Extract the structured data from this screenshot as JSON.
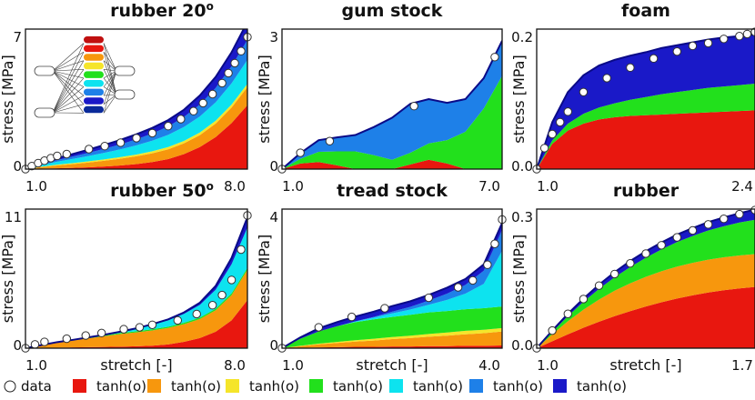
{
  "colors": {
    "red": "#e8170f",
    "orange": "#f7970d",
    "yellow": "#f5e52a",
    "green": "#22e01c",
    "cyan": "#0de3ef",
    "lightblue": "#1e80e8",
    "navy": "#1a19c8",
    "curve": "#0a0a88"
  },
  "legend": [
    {
      "label": "data",
      "color": "#ffffff",
      "marker": "circle"
    },
    {
      "label": "tanh(o)",
      "color": "#e8170f",
      "marker": "square"
    },
    {
      "label": "tanh(o)",
      "color": "#f7970d",
      "marker": "square"
    },
    {
      "label": "tanh(o)",
      "color": "#f5e52a",
      "marker": "square"
    },
    {
      "label": "tanh(o)",
      "color": "#22e01c",
      "marker": "square"
    },
    {
      "label": "tanh(o)",
      "color": "#0de3ef",
      "marker": "square"
    },
    {
      "label": "tanh(o)",
      "color": "#1e80e8",
      "marker": "square"
    },
    {
      "label": "tanh(o)",
      "color": "#1a19c8",
      "marker": "square"
    }
  ],
  "chart_data": [
    {
      "type": "area",
      "title": "rubber 20",
      "title_sup": "o",
      "ylabel": "stress [MPa]",
      "xlabel": "",
      "xlim": [
        1.0,
        8.0
      ],
      "ylim": [
        0,
        7
      ],
      "xtick_labels": [
        "1.0",
        "8.0"
      ],
      "ytick_labels": [
        "0",
        "7"
      ],
      "x": [
        1.0,
        1.5,
        2.0,
        2.5,
        3.0,
        3.5,
        4.0,
        4.5,
        5.0,
        5.5,
        6.0,
        6.5,
        7.0,
        7.5,
        8.0
      ],
      "series": [
        {
          "name": "tanh(o)",
          "color": "red",
          "values": [
            0,
            0.02,
            0.04,
            0.06,
            0.09,
            0.13,
            0.18,
            0.25,
            0.35,
            0.5,
            0.75,
            1.1,
            1.6,
            2.3,
            3.2
          ]
        },
        {
          "name": "tanh(o)",
          "color": "orange",
          "values": [
            0,
            0.08,
            0.14,
            0.19,
            0.24,
            0.29,
            0.34,
            0.39,
            0.44,
            0.49,
            0.54,
            0.6,
            0.68,
            0.78,
            0.9
          ]
        },
        {
          "name": "tanh(o)",
          "color": "yellow",
          "values": [
            0,
            0.02,
            0.04,
            0.05,
            0.06,
            0.07,
            0.08,
            0.09,
            0.1,
            0.11,
            0.12,
            0.13,
            0.14,
            0.15,
            0.16
          ]
        },
        {
          "name": "tanh(o)",
          "color": "cyan",
          "values": [
            0,
            0.08,
            0.15,
            0.21,
            0.27,
            0.33,
            0.39,
            0.46,
            0.53,
            0.61,
            0.7,
            0.8,
            0.92,
            1.06,
            1.2
          ]
        },
        {
          "name": "tanh(o)",
          "color": "lightblue",
          "values": [
            0,
            0.04,
            0.08,
            0.12,
            0.16,
            0.2,
            0.25,
            0.3,
            0.36,
            0.42,
            0.5,
            0.6,
            0.72,
            0.85,
            1.0
          ]
        },
        {
          "name": "tanh(o)",
          "color": "navy",
          "values": [
            0,
            0.06,
            0.1,
            0.13,
            0.16,
            0.19,
            0.22,
            0.25,
            0.28,
            0.32,
            0.36,
            0.45,
            0.55,
            0.7,
            0.9
          ]
        }
      ],
      "data_points": {
        "x": [
          1.0,
          1.2,
          1.4,
          1.6,
          1.8,
          2.0,
          2.3,
          3.0,
          3.5,
          4.0,
          4.5,
          5.0,
          5.5,
          5.9,
          6.3,
          6.6,
          6.9,
          7.2,
          7.4,
          7.6,
          7.8,
          8.0
        ],
        "y": [
          0,
          0.15,
          0.3,
          0.42,
          0.55,
          0.66,
          0.75,
          1.0,
          1.15,
          1.32,
          1.55,
          1.8,
          2.15,
          2.5,
          2.9,
          3.3,
          3.75,
          4.3,
          4.8,
          5.3,
          5.9,
          6.6
        ]
      }
    },
    {
      "type": "area",
      "title": "gum stock",
      "title_sup": "",
      "ylabel": "stress [MPa]",
      "xlabel": "",
      "xlim": [
        1.0,
        7.0
      ],
      "ylim": [
        0,
        3
      ],
      "xtick_labels": [
        "1.0",
        "7.0"
      ],
      "ytick_labels": [
        "0",
        "3"
      ],
      "x": [
        1.0,
        1.5,
        2.0,
        2.5,
        3.0,
        3.5,
        4.0,
        4.5,
        5.0,
        5.5,
        6.0,
        6.5,
        7.0
      ],
      "series": [
        {
          "name": "tanh(o)",
          "color": "red",
          "values": [
            0,
            0.12,
            0.15,
            0.08,
            0.0,
            0.0,
            0.0,
            0.1,
            0.2,
            0.12,
            0.0,
            0.0,
            0.0
          ]
        },
        {
          "name": "tanh(o)",
          "color": "green",
          "values": [
            0,
            0.1,
            0.22,
            0.3,
            0.38,
            0.3,
            0.2,
            0.25,
            0.35,
            0.5,
            0.8,
            1.3,
            2.0
          ]
        },
        {
          "name": "tanh(o)",
          "color": "lightblue",
          "values": [
            0,
            0.12,
            0.25,
            0.3,
            0.35,
            0.6,
            0.9,
            1.05,
            0.95,
            0.8,
            0.7,
            0.65,
            0.75
          ]
        }
      ],
      "data_points": {
        "x": [
          1.0,
          1.5,
          2.3,
          4.6,
          6.8
        ],
        "y": [
          0,
          0.35,
          0.6,
          1.35,
          2.4
        ]
      }
    },
    {
      "type": "area",
      "title": "foam",
      "title_sup": "",
      "ylabel": "stress [MPa]",
      "xlabel": "",
      "xlim": [
        1.0,
        2.4
      ],
      "ylim": [
        0,
        0.2
      ],
      "xtick_labels": [
        "1.0",
        "2.4"
      ],
      "ytick_labels": [
        "0.0",
        "0.2"
      ],
      "x": [
        1.0,
        1.1,
        1.2,
        1.3,
        1.4,
        1.5,
        1.6,
        1.7,
        1.8,
        1.9,
        2.0,
        2.1,
        2.2,
        2.3,
        2.4
      ],
      "series": [
        {
          "name": "tanh(o)",
          "color": "red",
          "values": [
            0,
            0.036,
            0.055,
            0.065,
            0.071,
            0.074,
            0.076,
            0.077,
            0.078,
            0.079,
            0.08,
            0.081,
            0.082,
            0.083,
            0.084
          ]
        },
        {
          "name": "tanh(o)",
          "color": "green",
          "values": [
            0,
            0.005,
            0.01,
            0.014,
            0.017,
            0.02,
            0.023,
            0.026,
            0.029,
            0.031,
            0.033,
            0.035,
            0.036,
            0.037,
            0.038
          ]
        },
        {
          "name": "tanh(o)",
          "color": "navy",
          "values": [
            0,
            0.026,
            0.045,
            0.055,
            0.06,
            0.062,
            0.063,
            0.064,
            0.066,
            0.067,
            0.068,
            0.069,
            0.07,
            0.07,
            0.07
          ]
        }
      ],
      "data_points": {
        "x": [
          1.0,
          1.05,
          1.1,
          1.15,
          1.2,
          1.3,
          1.45,
          1.6,
          1.75,
          1.9,
          2.0,
          2.1,
          2.2,
          2.3,
          2.35,
          2.4
        ],
        "y": [
          0,
          0.03,
          0.05,
          0.067,
          0.082,
          0.11,
          0.13,
          0.145,
          0.158,
          0.168,
          0.176,
          0.18,
          0.186,
          0.19,
          0.193,
          0.196
        ]
      }
    },
    {
      "type": "area",
      "title": "rubber 50",
      "title_sup": "o",
      "ylabel": "stress [MPa]",
      "xlabel": "stretch [-]",
      "xlim": [
        1.0,
        8.0
      ],
      "ylim": [
        0,
        11
      ],
      "xtick_labels": [
        "1.0",
        "8.0"
      ],
      "ytick_labels": [
        "0",
        "11"
      ],
      "x": [
        1.0,
        1.5,
        2.0,
        2.5,
        3.0,
        3.5,
        4.0,
        4.5,
        5.0,
        5.5,
        6.0,
        6.5,
        7.0,
        7.5,
        8.0
      ],
      "series": [
        {
          "name": "tanh(o)",
          "color": "red",
          "values": [
            0,
            0.02,
            0.04,
            0.06,
            0.08,
            0.1,
            0.12,
            0.15,
            0.2,
            0.3,
            0.5,
            0.8,
            1.3,
            2.2,
            3.8
          ]
        },
        {
          "name": "tanh(o)",
          "color": "orange",
          "values": [
            0,
            0.2,
            0.4,
            0.55,
            0.7,
            0.85,
            1.0,
            1.1,
            1.2,
            1.3,
            1.4,
            1.5,
            1.7,
            2.0,
            2.4
          ]
        },
        {
          "name": "tanh(o)",
          "color": "green",
          "values": [
            0,
            0.02,
            0.04,
            0.05,
            0.06,
            0.07,
            0.08,
            0.09,
            0.1,
            0.1,
            0.11,
            0.12,
            0.13,
            0.14,
            0.15
          ]
        },
        {
          "name": "tanh(o)",
          "color": "cyan",
          "values": [
            0,
            0.0,
            0.0,
            0.0,
            0.02,
            0.05,
            0.1,
            0.2,
            0.35,
            0.5,
            0.7,
            1.0,
            1.5,
            2.3,
            3.2
          ]
        },
        {
          "name": "tanh(o)",
          "color": "navy",
          "values": [
            0,
            0.0,
            0.0,
            0.0,
            0.0,
            0.0,
            0.01,
            0.03,
            0.05,
            0.08,
            0.12,
            0.18,
            0.3,
            0.5,
            0.8
          ]
        }
      ],
      "data_points": {
        "x": [
          1.0,
          1.3,
          1.6,
          2.3,
          2.9,
          3.4,
          4.1,
          4.6,
          5.0,
          5.8,
          6.4,
          6.9,
          7.2,
          7.5,
          7.8,
          8.0
        ],
        "y": [
          0,
          0.3,
          0.5,
          0.75,
          1.0,
          1.2,
          1.5,
          1.65,
          1.85,
          2.2,
          2.7,
          3.4,
          4.2,
          5.4,
          7.8,
          10.5
        ]
      }
    },
    {
      "type": "area",
      "title": "tread stock",
      "title_sup": "",
      "ylabel": "stress [MPa]",
      "xlabel": "stretch [-]",
      "xlim": [
        1.0,
        4.0
      ],
      "ylim": [
        0,
        4
      ],
      "xtick_labels": [
        "1.0",
        "4.0"
      ],
      "ytick_labels": [
        "0",
        "4"
      ],
      "x": [
        1.0,
        1.25,
        1.5,
        1.75,
        2.0,
        2.25,
        2.5,
        2.75,
        3.0,
        3.25,
        3.5,
        3.75,
        4.0
      ],
      "series": [
        {
          "name": "tanh(o)",
          "color": "red",
          "values": [
            0,
            0.01,
            0.02,
            0.03,
            0.04,
            0.04,
            0.05,
            0.05,
            0.06,
            0.06,
            0.07,
            0.07,
            0.08
          ]
        },
        {
          "name": "tanh(o)",
          "color": "orange",
          "values": [
            0,
            0.05,
            0.09,
            0.12,
            0.15,
            0.18,
            0.21,
            0.24,
            0.27,
            0.3,
            0.33,
            0.36,
            0.4
          ]
        },
        {
          "name": "tanh(o)",
          "color": "yellow",
          "values": [
            0,
            0.01,
            0.02,
            0.03,
            0.04,
            0.05,
            0.06,
            0.07,
            0.08,
            0.09,
            0.1,
            0.1,
            0.1
          ]
        },
        {
          "name": "tanh(o)",
          "color": "green",
          "values": [
            0,
            0.2,
            0.35,
            0.45,
            0.52,
            0.56,
            0.58,
            0.6,
            0.62,
            0.62,
            0.62,
            0.62,
            0.62
          ]
        },
        {
          "name": "tanh(o)",
          "color": "cyan",
          "values": [
            0,
            0.0,
            0.0,
            0.0,
            0.02,
            0.05,
            0.1,
            0.15,
            0.22,
            0.32,
            0.45,
            0.7,
            1.6
          ]
        },
        {
          "name": "tanh(o)",
          "color": "lightblue",
          "values": [
            0,
            0.0,
            0.0,
            0.0,
            0.0,
            0.02,
            0.05,
            0.08,
            0.12,
            0.18,
            0.25,
            0.38,
            0.6
          ]
        },
        {
          "name": "tanh(o)",
          "color": "navy",
          "values": [
            0,
            0.04,
            0.09,
            0.12,
            0.14,
            0.15,
            0.16,
            0.16,
            0.16,
            0.17,
            0.17,
            0.18,
            0.2
          ]
        }
      ],
      "data_points": {
        "x": [
          1.0,
          1.5,
          1.95,
          2.4,
          3.0,
          3.4,
          3.6,
          3.8,
          3.9,
          4.0
        ],
        "y": [
          0,
          0.6,
          0.9,
          1.15,
          1.45,
          1.75,
          1.95,
          2.4,
          3.0,
          3.7
        ]
      }
    },
    {
      "type": "area",
      "title": "rubber",
      "title_sup": "",
      "ylabel": "stress [MPa]",
      "xlabel": "stretch [-]",
      "xlim": [
        1.0,
        1.7
      ],
      "ylim": [
        0,
        0.3
      ],
      "xtick_labels": [
        "1.0",
        "1.7"
      ],
      "ytick_labels": [
        "0.0",
        "0.3"
      ],
      "x": [
        1.0,
        1.05,
        1.1,
        1.15,
        1.2,
        1.25,
        1.3,
        1.35,
        1.4,
        1.45,
        1.5,
        1.55,
        1.6,
        1.65,
        1.7
      ],
      "series": [
        {
          "name": "tanh(o)",
          "color": "red",
          "values": [
            0,
            0.015,
            0.03,
            0.044,
            0.057,
            0.069,
            0.08,
            0.09,
            0.099,
            0.107,
            0.114,
            0.12,
            0.125,
            0.129,
            0.132
          ]
        },
        {
          "name": "tanh(o)",
          "color": "orange",
          "values": [
            0,
            0.015,
            0.028,
            0.039,
            0.048,
            0.055,
            0.06,
            0.064,
            0.067,
            0.069,
            0.07,
            0.071,
            0.071,
            0.071,
            0.071
          ]
        },
        {
          "name": "tanh(o)",
          "color": "green",
          "values": [
            0,
            0.005,
            0.011,
            0.017,
            0.023,
            0.029,
            0.035,
            0.041,
            0.047,
            0.053,
            0.058,
            0.063,
            0.067,
            0.071,
            0.074
          ]
        },
        {
          "name": "tanh(o)",
          "color": "navy",
          "values": [
            0,
            0.003,
            0.005,
            0.007,
            0.009,
            0.011,
            0.013,
            0.014,
            0.015,
            0.016,
            0.017,
            0.018,
            0.019,
            0.02,
            0.022
          ]
        }
      ],
      "data_points": {
        "x": [
          1.0,
          1.05,
          1.1,
          1.15,
          1.2,
          1.25,
          1.3,
          1.35,
          1.4,
          1.45,
          1.5,
          1.55,
          1.6,
          1.65,
          1.7
        ],
        "y": [
          0,
          0.038,
          0.074,
          0.106,
          0.135,
          0.16,
          0.183,
          0.204,
          0.222,
          0.239,
          0.254,
          0.267,
          0.279,
          0.289,
          0.298
        ]
      }
    }
  ]
}
